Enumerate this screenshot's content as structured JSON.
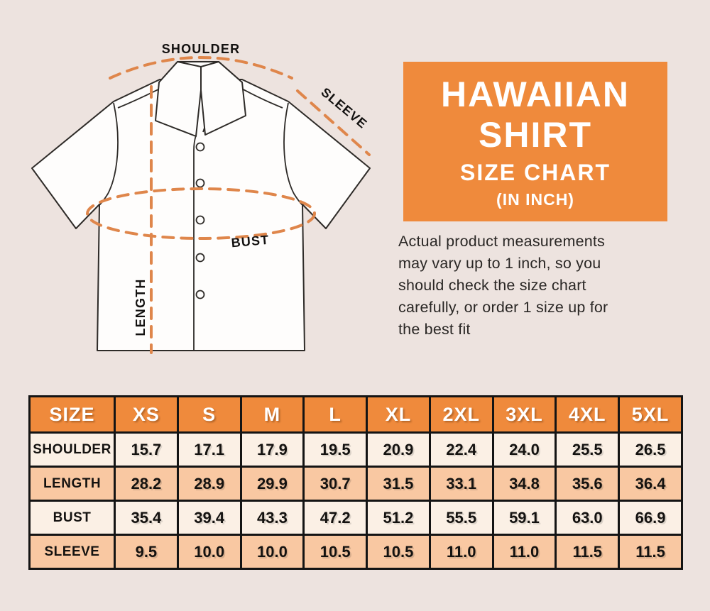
{
  "colors": {
    "background": "#EDE3DF",
    "accent_orange": "#EF8A3C",
    "dash_orange": "#DF864B",
    "row_peach": "#F9C8A2",
    "row_cream": "#FBF0E5",
    "table_border": "#141414",
    "text_dark": "#141210"
  },
  "diagram": {
    "shoulder_label": "SHOULDER",
    "sleeve_label": "SLEEVE",
    "bust_label": "BUST",
    "length_label": "LENGTH"
  },
  "title_card": {
    "line1": "HAWAIIAN",
    "line2": "SHIRT",
    "line3": "SIZE CHART",
    "line4": "(IN INCH)"
  },
  "note_text": "Actual product measurements\nmay vary up to 1 inch, so you\nshould check the size chart\ncarefully, or order 1 size up for\nthe best fit",
  "size_table": {
    "columns": [
      "SIZE",
      "XS",
      "S",
      "M",
      "L",
      "XL",
      "2XL",
      "3XL",
      "4XL",
      "5XL"
    ],
    "rows": [
      {
        "label": "SHOULDER",
        "values": [
          "15.7",
          "17.1",
          "17.9",
          "19.5",
          "20.9",
          "22.4",
          "24.0",
          "25.5",
          "26.5"
        ]
      },
      {
        "label": "LENGTH",
        "values": [
          "28.2",
          "28.9",
          "29.9",
          "30.7",
          "31.5",
          "33.1",
          "34.8",
          "35.6",
          "36.4"
        ]
      },
      {
        "label": "BUST",
        "values": [
          "35.4",
          "39.4",
          "43.3",
          "47.2",
          "51.2",
          "55.5",
          "59.1",
          "63.0",
          "66.9"
        ]
      },
      {
        "label": "SLEEVE",
        "values": [
          "9.5",
          "10.0",
          "10.0",
          "10.5",
          "10.5",
          "11.0",
          "11.0",
          "11.5",
          "11.5"
        ]
      }
    ]
  }
}
